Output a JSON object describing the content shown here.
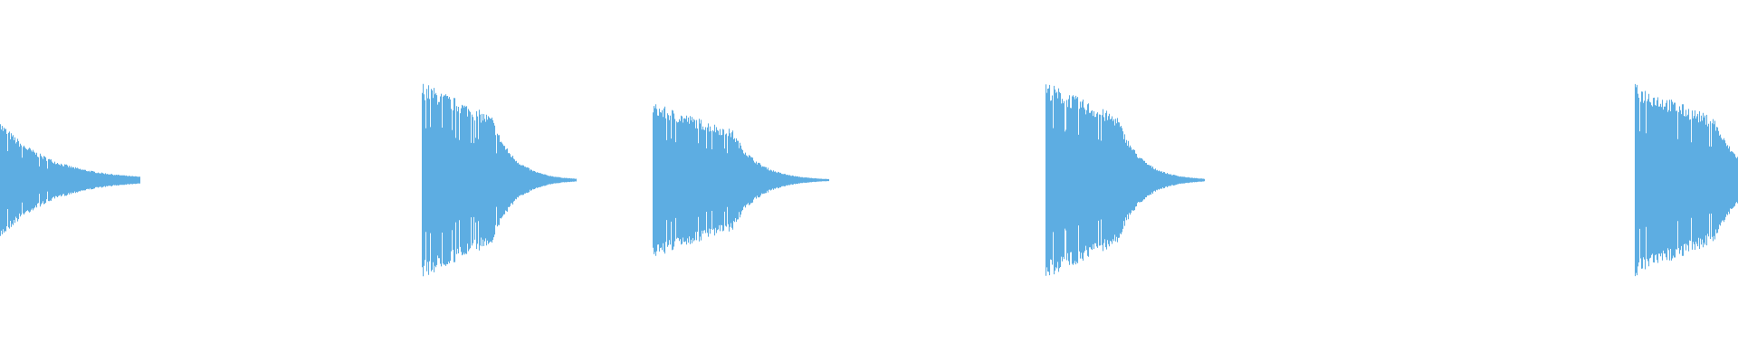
{
  "waveform": {
    "color": "#5dade2",
    "background": "#ffffff",
    "bursts": [
      {
        "peak_amplitude": 0.58
      },
      {
        "peak_amplitude": 0.84
      },
      {
        "peak_amplitude": 0.66
      },
      {
        "peak_amplitude": 0.84
      },
      {
        "peak_amplitude": 0.82
      }
    ]
  }
}
